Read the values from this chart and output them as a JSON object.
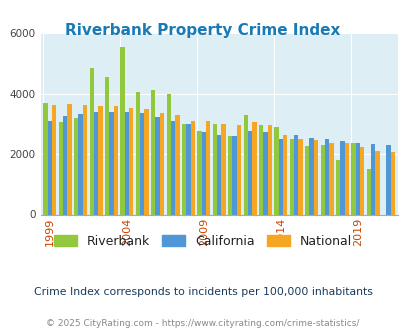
{
  "title": "Riverbank Property Crime Index",
  "subtitle": "Crime Index corresponds to incidents per 100,000 inhabitants",
  "footer": "© 2025 CityRating.com - https://www.cityrating.com/crime-statistics/",
  "years": [
    1999,
    2000,
    2001,
    2002,
    2003,
    2004,
    2005,
    2006,
    2007,
    2008,
    2009,
    2010,
    2011,
    2012,
    2013,
    2014,
    2015,
    2016,
    2017,
    2018,
    2019,
    2020,
    2021
  ],
  "riverbank": [
    3700,
    3050,
    3200,
    4850,
    4530,
    5530,
    4050,
    4100,
    4000,
    3000,
    2750,
    3000,
    2600,
    3300,
    2950,
    2900,
    2500,
    2250,
    2300,
    1800,
    2380,
    1520,
    0
  ],
  "california": [
    3100,
    3250,
    3320,
    3380,
    3400,
    3380,
    3350,
    3230,
    3100,
    2980,
    2730,
    2630,
    2580,
    2750,
    2720,
    2480,
    2630,
    2520,
    2480,
    2420,
    2360,
    2330,
    2310
  ],
  "national": [
    3620,
    3660,
    3620,
    3600,
    3580,
    3520,
    3500,
    3350,
    3280,
    3100,
    3080,
    3000,
    2970,
    3060,
    2950,
    2620,
    2490,
    2450,
    2360,
    2370,
    2230,
    2090,
    2080
  ],
  "colors": {
    "riverbank": "#92c83e",
    "california": "#4f97d6",
    "national": "#f5a623",
    "plot_bg": "#ddeef4"
  },
  "ylim": [
    0,
    6000
  ],
  "yticks": [
    0,
    2000,
    4000,
    6000
  ],
  "xtick_years": [
    1999,
    2004,
    2009,
    2014,
    2019
  ],
  "bar_width": 0.28,
  "legend_labels": [
    "Riverbank",
    "California",
    "National"
  ]
}
